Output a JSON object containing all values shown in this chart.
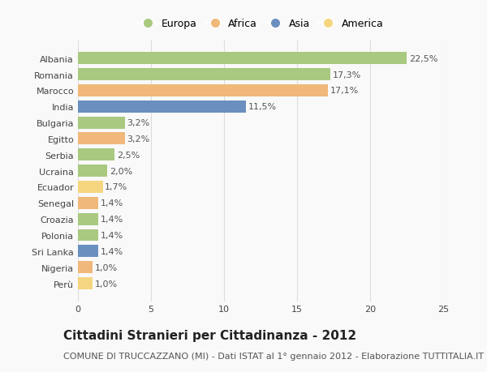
{
  "countries": [
    "Albania",
    "Romania",
    "Marocco",
    "India",
    "Bulgaria",
    "Egitto",
    "Serbia",
    "Ucraina",
    "Ecuador",
    "Senegal",
    "Croazia",
    "Polonia",
    "Sri Lanka",
    "Nigeria",
    "Perù"
  ],
  "values": [
    22.5,
    17.3,
    17.1,
    11.5,
    3.2,
    3.2,
    2.5,
    2.0,
    1.7,
    1.4,
    1.4,
    1.4,
    1.4,
    1.0,
    1.0
  ],
  "labels": [
    "22,5%",
    "17,3%",
    "17,1%",
    "11,5%",
    "3,2%",
    "3,2%",
    "2,5%",
    "2,0%",
    "1,7%",
    "1,4%",
    "1,4%",
    "1,4%",
    "1,4%",
    "1,0%",
    "1,0%"
  ],
  "continents": [
    "Europa",
    "Europa",
    "Africa",
    "Asia",
    "Europa",
    "Africa",
    "Europa",
    "Europa",
    "America",
    "Africa",
    "Europa",
    "Europa",
    "Asia",
    "Africa",
    "America"
  ],
  "continent_colors": {
    "Europa": "#a8c97f",
    "Africa": "#f0b87a",
    "Asia": "#6b8fbf",
    "America": "#f5d680"
  },
  "legend_order": [
    "Europa",
    "Africa",
    "Asia",
    "America"
  ],
  "title": "Cittadini Stranieri per Cittadinanza - 2012",
  "subtitle": "COMUNE DI TRUCCAZZANO (MI) - Dati ISTAT al 1° gennaio 2012 - Elaborazione TUTTITALIA.IT",
  "xlim": [
    0,
    25
  ],
  "xticks": [
    0,
    5,
    10,
    15,
    20,
    25
  ],
  "background_color": "#f9f9f9",
  "grid_color": "#dddddd",
  "bar_height": 0.75,
  "title_fontsize": 11,
  "subtitle_fontsize": 8,
  "label_fontsize": 8,
  "tick_fontsize": 8,
  "legend_fontsize": 9
}
